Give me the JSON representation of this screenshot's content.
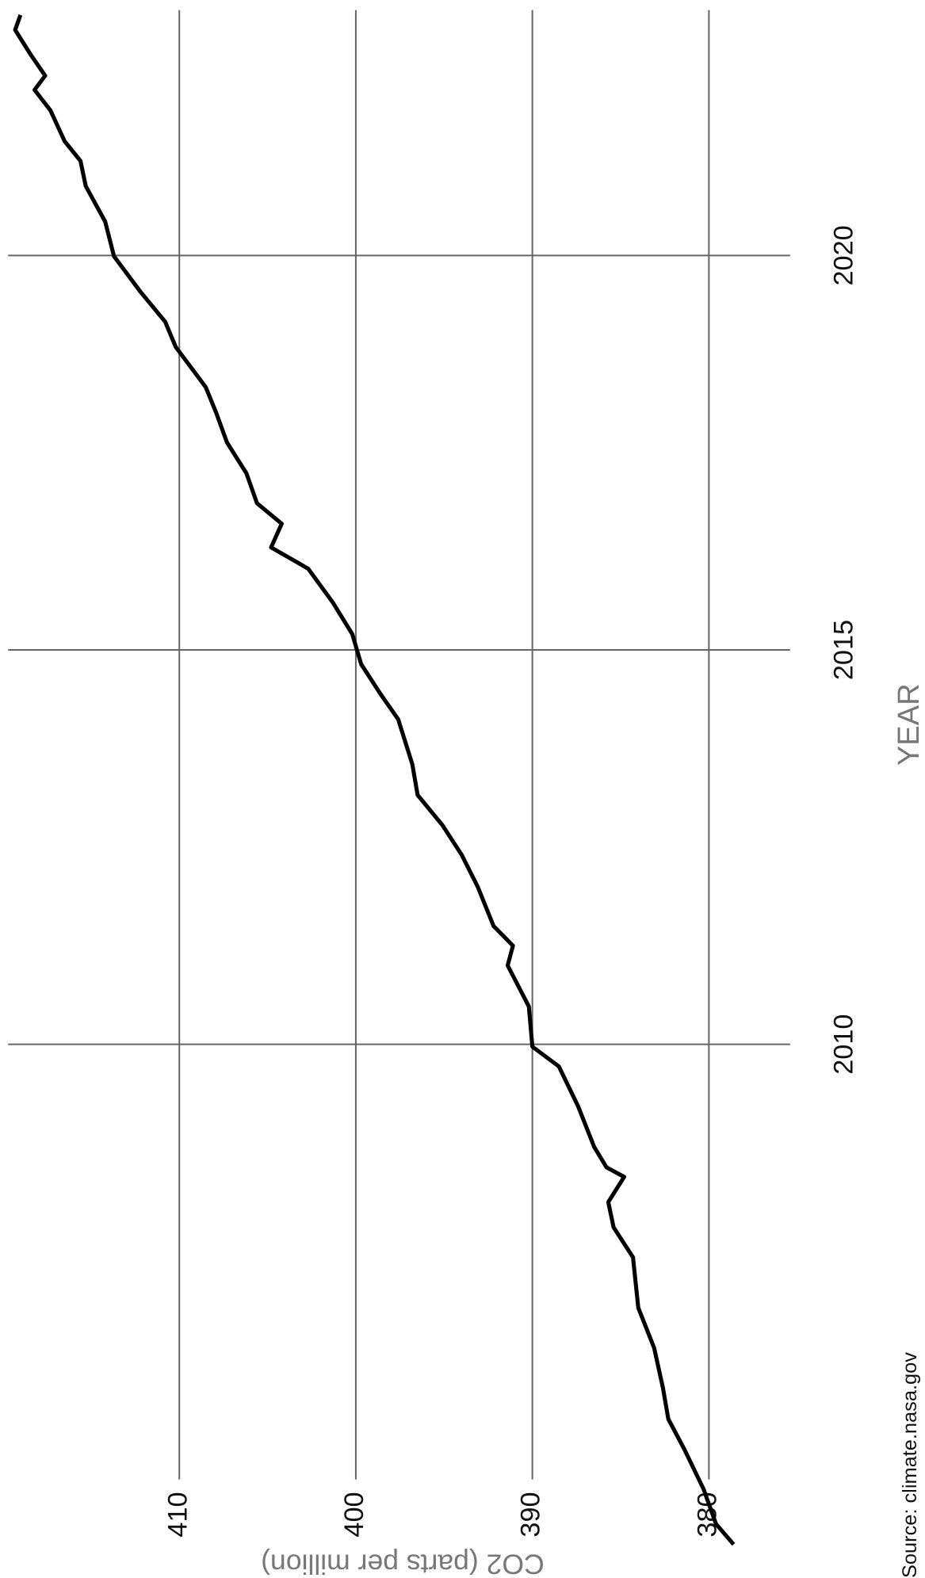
{
  "chart_data": {
    "type": "line",
    "xlabel": "YEAR",
    "ylabel": "CO2 (parts per million)",
    "source": "Source: climate.nasa.gov",
    "x": [
      2003.66,
      2003.92,
      2004.36,
      2004.87,
      2005.25,
      2005.64,
      2006.15,
      2006.66,
      2007.3,
      2007.68,
      2008.0,
      2008.32,
      2008.44,
      2008.7,
      2009.21,
      2009.72,
      2009.97,
      2010.48,
      2011.0,
      2011.25,
      2011.5,
      2012.0,
      2012.4,
      2012.78,
      2013.16,
      2013.55,
      2014.12,
      2014.44,
      2014.82,
      2015.2,
      2015.6,
      2016.03,
      2016.3,
      2016.6,
      2016.86,
      2017.24,
      2017.63,
      2018.0,
      2018.33,
      2018.84,
      2019.16,
      2019.54,
      2019.99,
      2020.43,
      2020.88,
      2021.2,
      2021.45,
      2021.84,
      2022.1,
      2022.28,
      2022.54,
      2022.86,
      2023.05
    ],
    "values": [
      378.6,
      379.6,
      380.3,
      381.4,
      382.3,
      382.6,
      383.1,
      384.0,
      384.3,
      385.4,
      385.7,
      384.8,
      385.8,
      386.5,
      387.4,
      388.5,
      390.0,
      390.2,
      391.4,
      391.1,
      392.2,
      393.1,
      394.0,
      395.1,
      396.5,
      396.8,
      397.6,
      398.6,
      399.7,
      400.2,
      401.3,
      402.7,
      404.8,
      404.2,
      405.6,
      406.2,
      407.3,
      407.9,
      408.5,
      410.2,
      410.8,
      412.2,
      413.7,
      414.2,
      415.3,
      415.6,
      416.5,
      417.3,
      418.2,
      417.6,
      418.4,
      419.3,
      419.0
    ],
    "color": "#000000",
    "xlim": [
      2003.4,
      2023.2
    ],
    "xticks": [
      2010,
      2015,
      2020
    ],
    "ylim": [
      375.4,
      419.7
    ],
    "yticks": [
      380,
      390,
      400,
      410
    ],
    "grid": true
  }
}
